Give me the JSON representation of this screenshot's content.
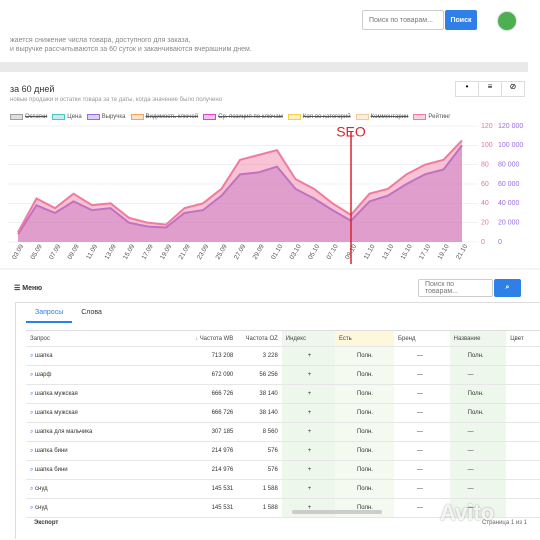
{
  "header": {
    "search_placeholder": "Поиск по товарам...",
    "search_button": "Поиск"
  },
  "notice": {
    "line1": "жается снижение числа товара, доступного для заказа,",
    "line2": "и выручке рассчитываются за 60 суток и заканчиваются вчерашним днем."
  },
  "chart_data": {
    "type": "area",
    "title": "за 60 дней",
    "subtitle": "новые продажи и остатки товара за те даты, когда значение было получено",
    "categories": [
      "03.09",
      "05.09",
      "07.09",
      "09.09",
      "11.09",
      "13.09",
      "15.09",
      "17.09",
      "19.09",
      "21.09",
      "23.09",
      "25.09",
      "27.09",
      "29.09",
      "01.10",
      "03.10",
      "05.10",
      "07.10",
      "09.10",
      "11.10",
      "13.10",
      "15.10",
      "17.10",
      "19.10",
      "21.10"
    ],
    "series": [
      {
        "name": "Остатки",
        "color": "#9e9e9e",
        "hidden": true
      },
      {
        "name": "Цена",
        "color": "#4fc3c8",
        "hidden": false
      },
      {
        "name": "Выручка",
        "color": "#9b6be0",
        "hidden": false,
        "axis": "y2",
        "values": [
          8000,
          38000,
          30000,
          42000,
          33000,
          35000,
          20000,
          16000,
          15000,
          30000,
          33000,
          48000,
          70000,
          72000,
          78000,
          55000,
          45000,
          33000,
          22000,
          42000,
          48000,
          60000,
          70000,
          75000,
          100000
        ]
      },
      {
        "name": "Видимость ключей",
        "color": "#f0a860",
        "hidden": true
      },
      {
        "name": "Ср. позиция по ключам",
        "color": "#d946d0",
        "hidden": true
      },
      {
        "name": "Кол-во категорий",
        "color": "#f5d04a",
        "hidden": true
      },
      {
        "name": "Комментарии",
        "color": "#f7c89a",
        "hidden": true
      },
      {
        "name": "Рейтинг",
        "color": "#f07aa0",
        "hidden": false,
        "values": [
          10,
          45,
          35,
          50,
          38,
          40,
          25,
          20,
          18,
          35,
          40,
          55,
          85,
          90,
          95,
          65,
          55,
          40,
          28,
          50,
          55,
          70,
          80,
          85,
          105
        ]
      }
    ],
    "ylim": [
      0,
      120
    ],
    "yticks": [
      0,
      20,
      40,
      60,
      80,
      100,
      120
    ],
    "y2lim": [
      0,
      120000
    ],
    "y2ticks": [
      0,
      {
        "value": 20000,
        "label": "20 000"
      },
      {
        "value": 40000,
        "label": "40 000"
      },
      {
        "value": 60000,
        "label": "60 000"
      },
      {
        "value": 80000,
        "label": "80 000"
      },
      {
        "value": 100000,
        "label": "100 000"
      },
      {
        "value": 120000,
        "label": "120 000"
      }
    ],
    "grid": true,
    "annotation": {
      "label": "SEO",
      "at": 18,
      "color": "#d8252f"
    }
  },
  "menu": {
    "title": "Меню",
    "search_placeholder": "Поиск по товарам..."
  },
  "tabs": [
    "Запросы",
    "Слова"
  ],
  "table": {
    "columns": [
      "Запрос",
      "Частота WB",
      "Частота OZ",
      "Индекс",
      "Есть",
      "Бренд",
      "Название",
      "Цвет"
    ],
    "rows": [
      [
        "шапка",
        "713 208",
        "3 228",
        "+",
        "Полн.",
        "—",
        "Полн."
      ],
      [
        "шарф",
        "672 090",
        "56 256",
        "+",
        "Полн.",
        "—",
        "—"
      ],
      [
        "шапка мужская",
        "666 726",
        "38 140",
        "+",
        "Полн.",
        "—",
        "Полн."
      ],
      [
        "шапка мужская",
        "666 726",
        "38 140",
        "+",
        "Полн.",
        "—",
        "Полн."
      ],
      [
        "шапка для мальчика",
        "307 185",
        "8 560",
        "+",
        "Полн.",
        "—",
        "—"
      ],
      [
        "шапка бини",
        "214 976",
        "576",
        "+",
        "Полн.",
        "—",
        "—"
      ],
      [
        "шапка бини",
        "214 976",
        "576",
        "+",
        "Полн.",
        "—",
        "—"
      ],
      [
        "снуд",
        "145 531",
        "1 588",
        "+",
        "Полн.",
        "—",
        "—"
      ],
      [
        "снуд",
        "145 531",
        "1 588",
        "+",
        "Полн.",
        "—",
        "—"
      ]
    ]
  },
  "footer": {
    "export": "Экспорт",
    "pages": "Страница 1 из 1"
  },
  "watermark": "Avito"
}
